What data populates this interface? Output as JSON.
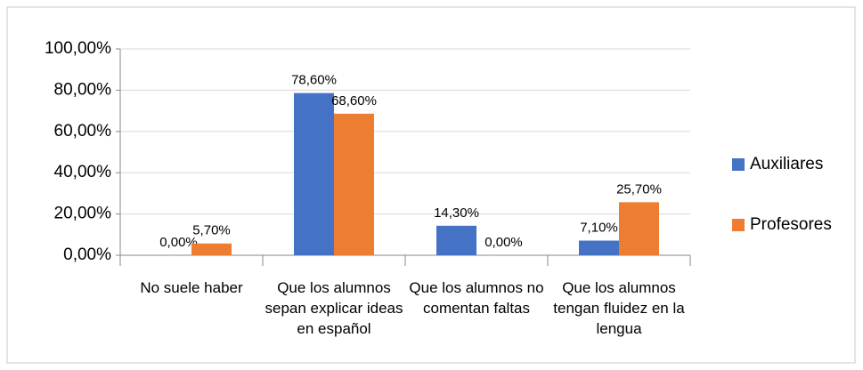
{
  "chart_data": {
    "type": "bar",
    "categories": [
      "No suele haber",
      "Que los alumnos sepan explicar ideas en español",
      "Que los alumnos no comentan faltas",
      "Que los alumnos tengan fluidez en la lengua"
    ],
    "series": [
      {
        "name": "Auxiliares",
        "color": "#4472c4",
        "values": [
          0,
          78.6,
          14.3,
          7.1
        ],
        "value_labels": [
          "0,00%",
          "78,60%",
          "14,30%",
          "7,10%"
        ]
      },
      {
        "name": "Profesores",
        "color": "#ed7d31",
        "values": [
          5.7,
          68.6,
          0,
          25.7
        ],
        "value_labels": [
          "5,70%",
          "68,60%",
          "0,00%",
          "25,70%"
        ]
      }
    ],
    "ylim": [
      0,
      100
    ],
    "yticks": [
      {
        "value": 0,
        "label": "0,00%"
      },
      {
        "value": 20,
        "label": "20,00%"
      },
      {
        "value": 40,
        "label": "40,00%"
      },
      {
        "value": 60,
        "label": "60,00%"
      },
      {
        "value": 80,
        "label": "80,00%"
      },
      {
        "value": 100,
        "label": "100,00%"
      }
    ],
    "grid": true,
    "legend": "right"
  }
}
